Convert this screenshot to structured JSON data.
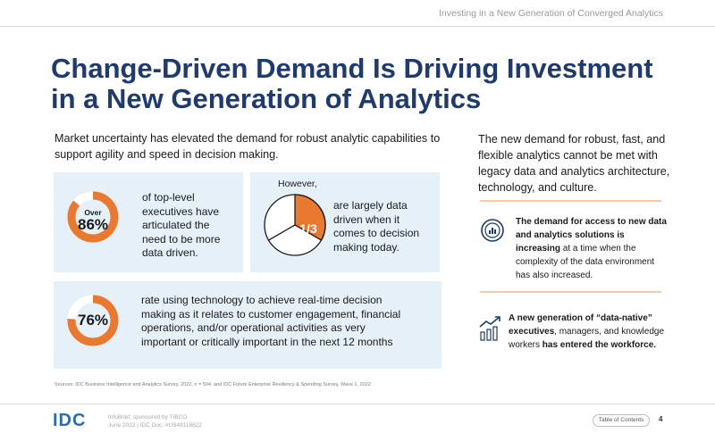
{
  "header": {
    "title": "Investing in a New Generation of Converged Analytics"
  },
  "title": {
    "line1": "Change-Driven Demand Is Driving Investment",
    "line2": "in a New Generation of Analytics"
  },
  "intro": "Market uncertainty has elevated the demand for robust analytic capabilities to support agility and speed in decision making.",
  "stat1": {
    "prefix": "Over",
    "value": "86%",
    "fraction": 0.86,
    "text": "of top-level executives have articulated the need to be more data driven."
  },
  "stat2": {
    "lead": "However,",
    "value": "1/3",
    "fraction": 0.3333,
    "text": "are largely data driven when it comes to decision making today."
  },
  "stat3": {
    "value": "76%",
    "fraction": 0.76,
    "text": "rate using technology to achieve real-time decision making as it relates to customer engagement, financial operations, and/or operational activities as very important or critically important in the next 12 months"
  },
  "right": {
    "intro": "The new demand for robust, fast, and flexible analytics cannot be met with legacy data and analytics architecture, technology, and culture.",
    "item1": {
      "icon": "analytics-chart-icon",
      "bold": "The demand for access to new data and analytics solutions is increasing",
      "rest": " at a time when the complexity of the data environment has also increased."
    },
    "item2": {
      "icon": "growth-bars-icon",
      "bold1": "A new generation of “data-native” executives",
      "mid": ", managers, and knowledge workers ",
      "bold2": "has entered the workforce."
    }
  },
  "source": "Sources: IDC Business Intelligence and Analytics Survey, 2022, n = 504, and IDC Future Enterprise Resiliency & Spending Survey, Wave 1, 2022",
  "footer": {
    "logo": "IDC",
    "meta_line1": "InfoBrief, sponsored by TIBCO",
    "meta_line2": "June 2022  |  IDC Doc. #US49118622",
    "toc": "Table of Contents",
    "page": "4"
  },
  "colors": {
    "navy": "#1f3a6e",
    "orange": "#e8792f",
    "card": "#e5f0f9",
    "ring": "#ffffff",
    "idc_blue": "#2a6db5"
  }
}
